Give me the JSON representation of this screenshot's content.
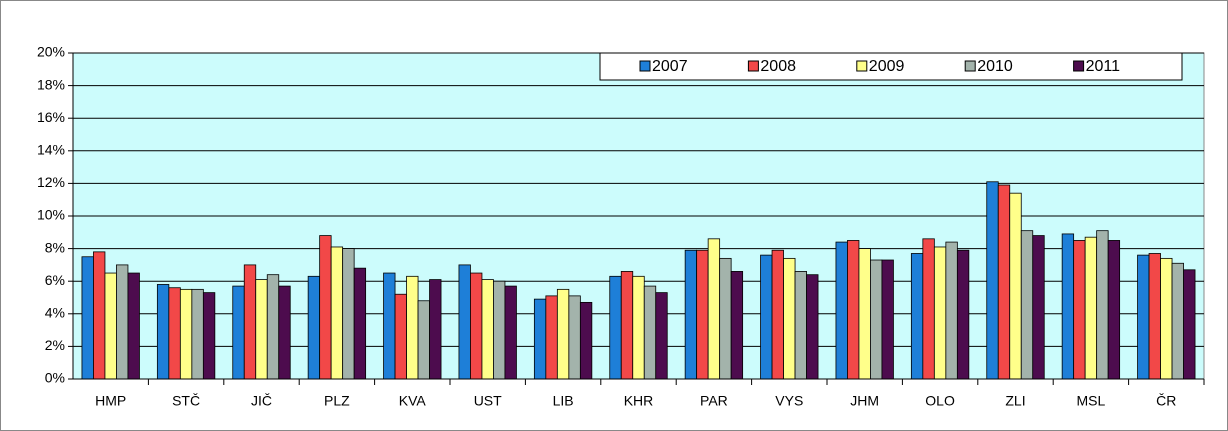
{
  "chart_data": {
    "type": "bar",
    "categories": [
      "HMP",
      "STČ",
      "JIČ",
      "PLZ",
      "KVA",
      "UST",
      "LIB",
      "KHR",
      "PAR",
      "VYS",
      "JHM",
      "OLO",
      "ZLI",
      "MSL",
      "ČR"
    ],
    "series": [
      {
        "name": "2007",
        "color": "#1e7fd8",
        "values": [
          7.5,
          5.8,
          5.7,
          6.3,
          6.5,
          7.0,
          4.9,
          6.3,
          7.9,
          7.6,
          8.4,
          7.7,
          12.1,
          8.9,
          7.6
        ]
      },
      {
        "name": "2008",
        "color": "#f24848",
        "values": [
          7.8,
          5.6,
          7.0,
          8.8,
          5.2,
          6.5,
          5.1,
          6.6,
          7.9,
          7.9,
          8.5,
          8.6,
          11.9,
          8.5,
          7.7
        ]
      },
      {
        "name": "2009",
        "color": "#ffff8a",
        "values": [
          6.5,
          5.5,
          6.1,
          8.1,
          6.3,
          6.1,
          5.5,
          6.3,
          8.6,
          7.4,
          8.0,
          8.1,
          11.4,
          8.7,
          7.4
        ]
      },
      {
        "name": "2010",
        "color": "#a3b3ab",
        "values": [
          7.0,
          5.5,
          6.4,
          8.0,
          4.8,
          6.0,
          5.1,
          5.7,
          7.4,
          6.6,
          7.3,
          8.4,
          9.1,
          9.1,
          7.1
        ]
      },
      {
        "name": "2011",
        "color": "#4d0c4e",
        "values": [
          6.5,
          5.3,
          5.7,
          6.8,
          6.1,
          5.7,
          4.7,
          5.3,
          6.6,
          6.4,
          7.3,
          7.9,
          8.8,
          8.5,
          6.7
        ]
      }
    ],
    "ylim": [
      0,
      20
    ],
    "yticks": [
      {
        "value": 0,
        "label": "0%"
      },
      {
        "value": 2,
        "label": "2%"
      },
      {
        "value": 4,
        "label": "4%"
      },
      {
        "value": 6,
        "label": "6%"
      },
      {
        "value": 8,
        "label": "8%"
      },
      {
        "value": 10,
        "label": "10%"
      },
      {
        "value": 12,
        "label": "12%"
      },
      {
        "value": 14,
        "label": "14%"
      },
      {
        "value": 16,
        "label": "16%"
      },
      {
        "value": 18,
        "label": "18%"
      },
      {
        "value": 20,
        "label": "20%"
      }
    ],
    "grid": true,
    "legend": "top-right",
    "plot_background": "#ccfcfc"
  }
}
